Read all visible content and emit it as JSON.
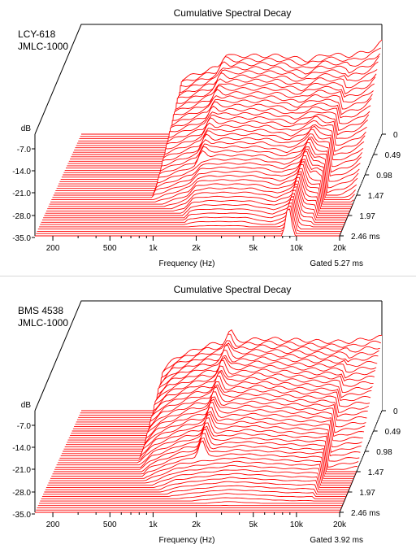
{
  "charts": [
    {
      "type": "waterfall",
      "title": "Cumulative Spectral Decay",
      "legend": [
        "LCY-618",
        "JMLC-1000"
      ],
      "xlabel": "Frequency (Hz)",
      "x_ticks": [
        "200",
        "500",
        "1k",
        "2k",
        "5k",
        "10k",
        "20k"
      ],
      "y_ticks": [
        "dB",
        "-7.0",
        "-14.0",
        "-21.0",
        "-28.0",
        "-35.0"
      ],
      "time_ticks": [
        "0",
        "0.49",
        "0.98",
        "1.47",
        "1.97",
        "2.46 ms"
      ],
      "gate_label": "Gated 5.27 ms",
      "line_color": "#ff0000",
      "chart_data": {
        "type": "waterfall",
        "x_scale": "log",
        "xlim_hz": [
          150,
          20000
        ],
        "ylim_db": [
          -35,
          0
        ],
        "time_range_ms": [
          0,
          2.46
        ],
        "slices": 46,
        "low_cut_hz": 760,
        "first_slice_db": [
          {
            "hz": 150,
            "db": -17.5
          },
          {
            "hz": 760,
            "db": -17.5
          },
          {
            "hz": 1400,
            "db": -13.5
          },
          {
            "hz": 1600,
            "db": -10.5
          },
          {
            "hz": 2000,
            "db": -10.0
          },
          {
            "hz": 4000,
            "db": -10.0
          },
          {
            "hz": 6000,
            "db": -11.5
          },
          {
            "hz": 8000,
            "db": -9.5
          },
          {
            "hz": 12000,
            "db": -10.0
          },
          {
            "hz": 16000,
            "db": -8.5
          },
          {
            "hz": 18000,
            "db": -7.5
          },
          {
            "hz": 20000,
            "db": -5.5
          }
        ],
        "decay": {
          "base_db_per_ms": 11.0,
          "drop_hz": 12000,
          "drop_db": -4.0
        },
        "resonances": [
          {
            "hz": 1600,
            "db": -9.5,
            "ms_end": 1.35
          },
          {
            "hz": 2600,
            "db": -14.0,
            "ms_end": 0.95
          },
          {
            "hz": 3200,
            "db": -20.0,
            "ms_end": 0.9
          },
          {
            "hz": 8800,
            "db": -14.0,
            "ms_end": 2.46
          },
          {
            "hz": 10500,
            "db": -15.0,
            "ms_end": 1.6
          }
        ]
      }
    },
    {
      "type": "waterfall",
      "title": "Cumulative Spectral Decay",
      "legend": [
        "BMS 4538",
        "JMLC-1000"
      ],
      "xlabel": "Frequency (Hz)",
      "x_ticks": [
        "200",
        "500",
        "1k",
        "2k",
        "5k",
        "10k",
        "20k"
      ],
      "y_ticks": [
        "dB",
        "-7.0",
        "-14.0",
        "-21.0",
        "-28.0",
        "-35.0"
      ],
      "time_ticks": [
        "0",
        "0.49",
        "0.98",
        "1.47",
        "1.97",
        "2.46 ms"
      ],
      "gate_label": "Gated 3.92 ms",
      "line_color": "#ff0000",
      "chart_data": {
        "type": "waterfall",
        "x_scale": "log",
        "xlim_hz": [
          150,
          20000
        ],
        "ylim_db": [
          -35,
          0
        ],
        "time_range_ms": [
          0,
          2.46
        ],
        "slices": 46,
        "low_cut_hz": 560,
        "first_slice_db": [
          {
            "hz": 150,
            "db": -22.5
          },
          {
            "hz": 560,
            "db": -22.5
          },
          {
            "hz": 700,
            "db": -18.0
          },
          {
            "hz": 1200,
            "db": -14.0
          },
          {
            "hz": 1800,
            "db": -13.0
          },
          {
            "hz": 3000,
            "db": -12.0
          },
          {
            "hz": 5000,
            "db": -12.5
          },
          {
            "hz": 8000,
            "db": -13.0
          },
          {
            "hz": 12000,
            "db": -13.0
          },
          {
            "hz": 16000,
            "db": -12.0
          },
          {
            "hz": 20000,
            "db": -11.5
          }
        ],
        "decay": {
          "base_db_per_ms": 10.0,
          "drop_hz": 12000,
          "drop_db": -3.0
        },
        "resonances": [
          {
            "hz": 1700,
            "db": -9.5,
            "ms_end": 1.6
          },
          {
            "hz": 2400,
            "db": -14.0,
            "ms_end": 1.2
          },
          {
            "hz": 3000,
            "db": -18.0,
            "ms_end": 1.1
          },
          {
            "hz": 5500,
            "db": -20.0,
            "ms_end": 1.2
          },
          {
            "hz": 9000,
            "db": -19.0,
            "ms_end": 1.4
          }
        ]
      }
    }
  ]
}
